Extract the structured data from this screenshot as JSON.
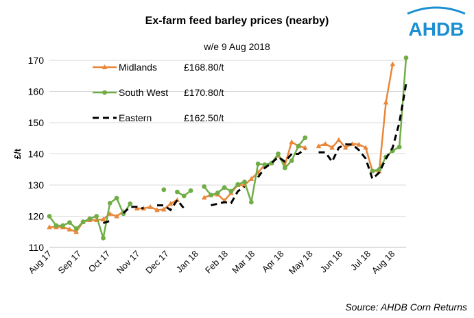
{
  "chart_data": {
    "type": "line",
    "title": "Ex-farm feed barley prices (nearby)",
    "subtitle": "w/e 9 Aug 2018",
    "ylabel": "£/t",
    "ylim": [
      110,
      170
    ],
    "yticks": [
      110,
      120,
      130,
      140,
      150,
      160,
      170
    ],
    "xlim": [
      0,
      51
    ],
    "xticks": [
      {
        "label": "Aug 17",
        "x": 0
      },
      {
        "label": "Sep 17",
        "x": 4.4
      },
      {
        "label": "Oct 17",
        "x": 8.7
      },
      {
        "label": "Nov 17",
        "x": 13.1
      },
      {
        "label": "Dec 17",
        "x": 17.4
      },
      {
        "label": "Jan 18",
        "x": 21.8
      },
      {
        "label": "Feb 18",
        "x": 26.2
      },
      {
        "label": "Mar 18",
        "x": 30.2
      },
      {
        "label": "Apr 18",
        "x": 34.5
      },
      {
        "label": "May 18",
        "x": 38.8
      },
      {
        "label": "Jun 18",
        "x": 43.2
      },
      {
        "label": "Jul 18",
        "x": 47.4
      },
      {
        "label": "Aug 18",
        "x": 51.0
      }
    ],
    "grid": true,
    "legend_position": "top-left",
    "series": [
      {
        "name": "Midlands",
        "legend_value": "£168.80/t",
        "color": "#E8873A",
        "style": "solid",
        "marker": "triangle",
        "points": [
          [
            0,
            116.5
          ],
          [
            1,
            116.5
          ],
          [
            2,
            116.5
          ],
          [
            3,
            115.8
          ],
          [
            4,
            115
          ],
          [
            5,
            118.2
          ],
          [
            6,
            118.8
          ],
          [
            7,
            118.8
          ],
          [
            8,
            119
          ],
          [
            9,
            120.8
          ],
          [
            10,
            120
          ],
          [
            11,
            121.5
          ],
          [
            13,
            122.5
          ],
          [
            14,
            122.5
          ],
          [
            15,
            123
          ],
          [
            16,
            122
          ],
          [
            17,
            122.2
          ],
          [
            18,
            124
          ],
          [
            19,
            125.2
          ],
          [
            23,
            126
          ],
          [
            24,
            126.8
          ],
          [
            25,
            127
          ],
          [
            26,
            125
          ],
          [
            27,
            127.5
          ],
          [
            28,
            130
          ],
          [
            29,
            130
          ],
          [
            30,
            132
          ],
          [
            31,
            134
          ],
          [
            32,
            136.5
          ],
          [
            33,
            137
          ],
          [
            34,
            139.5
          ],
          [
            35,
            136.5
          ],
          [
            36,
            143.8
          ],
          [
            37,
            142.5
          ],
          [
            38,
            142
          ],
          [
            40,
            142.5
          ],
          [
            41,
            143.2
          ],
          [
            42,
            142
          ],
          [
            43,
            144.5
          ],
          [
            44,
            142
          ],
          [
            45,
            143.2
          ],
          [
            46,
            143
          ],
          [
            47,
            142
          ],
          [
            48,
            134.5
          ],
          [
            49,
            134.5
          ],
          [
            50,
            156.5
          ],
          [
            51,
            168.8
          ]
        ]
      },
      {
        "name": "South West",
        "legend_value": "£170.80/t",
        "color": "#70AD47",
        "style": "solid",
        "marker": "circle",
        "points": [
          [
            0,
            120
          ],
          [
            1,
            117
          ],
          [
            2,
            117
          ],
          [
            3,
            118
          ],
          [
            4,
            116
          ],
          [
            5,
            118.2
          ],
          [
            6,
            119.2
          ],
          [
            7,
            120
          ],
          [
            8,
            113
          ],
          [
            9,
            124.2
          ],
          [
            10,
            125.8
          ],
          [
            11,
            120.8
          ],
          [
            12,
            124
          ],
          [
            17,
            128.5
          ],
          [
            19,
            127.8
          ],
          [
            20,
            126.5
          ],
          [
            21,
            128.2
          ],
          [
            23,
            129.5
          ],
          [
            24,
            126.8
          ],
          [
            25,
            127.5
          ],
          [
            26,
            129.2
          ],
          [
            27,
            128
          ],
          [
            28,
            130.2
          ],
          [
            29,
            131
          ],
          [
            30,
            124.5
          ],
          [
            31,
            136.8
          ],
          [
            32,
            136.5
          ],
          [
            33,
            137
          ],
          [
            34,
            140
          ],
          [
            35,
            135.5
          ],
          [
            36,
            137.8
          ],
          [
            37,
            142.5
          ],
          [
            38,
            145.2
          ],
          [
            48,
            134.5
          ],
          [
            49,
            135
          ],
          [
            50,
            139
          ],
          [
            51,
            141
          ],
          [
            52,
            142.2
          ],
          [
            53,
            170.8
          ]
        ]
      },
      {
        "name": "Eastern",
        "legend_value": "£162.50/t",
        "color": "#000000",
        "style": "dashed",
        "marker": "none",
        "points": [
          [
            0,
            118
          ],
          [
            2,
            116
          ],
          [
            4,
            115.8
          ],
          [
            6,
            118
          ],
          [
            8,
            117.8
          ],
          [
            9,
            118.5
          ],
          [
            11,
            121
          ],
          [
            12,
            123
          ],
          [
            13,
            123
          ],
          [
            14,
            122.5
          ],
          [
            16,
            123.5
          ],
          [
            17,
            123.5
          ],
          [
            18,
            122
          ],
          [
            19,
            125.2
          ],
          [
            20,
            122.5
          ],
          [
            24,
            123.5
          ],
          [
            25,
            124
          ],
          [
            26,
            124.5
          ],
          [
            27,
            124.2
          ],
          [
            28,
            128
          ],
          [
            29,
            129.5
          ],
          [
            31,
            132.5
          ],
          [
            32,
            135.5
          ],
          [
            33,
            137
          ],
          [
            34,
            139
          ],
          [
            35,
            137.5
          ],
          [
            36,
            140
          ],
          [
            37,
            140
          ],
          [
            38,
            141.5
          ],
          [
            40,
            140.5
          ],
          [
            41,
            140.5
          ],
          [
            42,
            137.5
          ],
          [
            43,
            142
          ],
          [
            44,
            143
          ],
          [
            45,
            143
          ],
          [
            46,
            141.2
          ],
          [
            47,
            138.5
          ],
          [
            48,
            132
          ],
          [
            49,
            134
          ],
          [
            50,
            138.5
          ],
          [
            51,
            142
          ],
          [
            52,
            150
          ],
          [
            53,
            162.5
          ]
        ]
      }
    ]
  },
  "source": "Source: AHDB Corn Returns",
  "logo_text": "AHDB",
  "colors": {
    "logo": "#1B8FD1"
  }
}
